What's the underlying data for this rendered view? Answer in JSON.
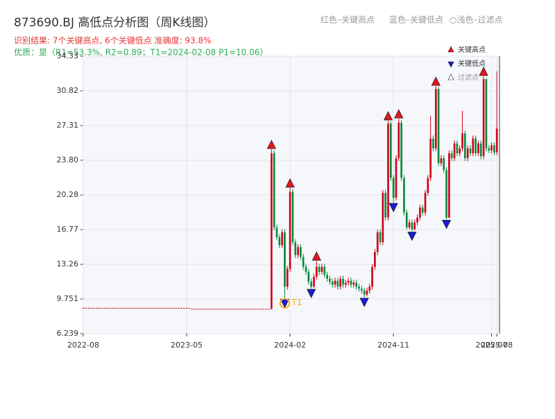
{
  "chart_data": {
    "type": "candlestick",
    "title": "873690.BJ 高低点分析图（周K线图）",
    "header_legend": [
      "红色–关键高点",
      "蓝色–关键低点",
      "○浅色–过滤点"
    ],
    "subtitle": "识别结果: 7个关键高点, 6个关键低点  准确度: 93.8%",
    "quality": "优质：是（R1=53.3%, R2=0.89；T1=2024-02-08 P1=10.06）",
    "legend": [
      "关键高点",
      "关键低点",
      "过滤点"
    ],
    "up_color": "#d0021b",
    "down_color": "#0a8a3a",
    "high_color": "#e8141c",
    "low_color": "#1a1ad8",
    "annotation_color": "#f5a623",
    "categories": [
      "2022-08",
      null,
      null,
      null,
      null,
      null,
      null,
      null,
      null,
      null,
      null,
      null,
      null,
      null,
      null,
      null,
      null,
      null,
      null,
      null,
      null,
      null,
      null,
      null,
      null,
      null,
      null,
      null,
      null,
      null,
      null,
      null,
      null,
      null,
      null,
      null,
      null,
      null,
      null,
      "2023-05",
      null,
      null,
      null,
      null,
      null,
      null,
      null,
      null,
      null,
      null,
      null,
      null,
      null,
      null,
      null,
      null,
      null,
      null,
      null,
      null,
      null,
      null,
      null,
      null,
      null,
      null,
      null,
      null,
      null,
      null,
      null,
      null,
      null,
      null,
      null,
      null,
      null,
      null,
      "2024-02",
      null,
      null,
      null,
      null,
      null,
      null,
      null,
      null,
      null,
      null,
      null,
      null,
      null,
      null,
      null,
      null,
      null,
      null,
      null,
      null,
      null,
      null,
      null,
      null,
      null,
      null,
      null,
      null,
      null,
      null,
      null,
      null,
      null,
      null,
      null,
      null,
      null,
      null,
      "2024-11",
      null,
      null,
      null,
      null,
      null,
      null,
      null,
      null,
      null,
      null,
      null,
      null,
      null,
      null,
      null,
      null,
      null,
      null,
      null,
      null,
      null,
      null,
      null,
      null,
      null,
      null,
      null,
      null,
      null,
      null,
      null,
      null,
      null,
      null,
      null,
      null,
      "2025-07",
      null,
      "2025-08"
    ],
    "open": [
      8.85,
      8.85,
      8.85,
      8.85,
      8.85,
      8.85,
      8.85,
      8.85,
      8.85,
      8.85,
      8.85,
      8.85,
      8.85,
      8.85,
      8.85,
      8.85,
      8.85,
      8.85,
      8.85,
      8.85,
      8.85,
      8.85,
      8.85,
      8.85,
      8.85,
      8.85,
      8.85,
      8.85,
      8.85,
      8.85,
      8.85,
      8.85,
      8.85,
      8.85,
      8.85,
      8.85,
      8.85,
      8.85,
      8.85,
      8.85,
      8.85,
      8.75,
      8.75,
      8.75,
      8.75,
      8.75,
      8.75,
      8.75,
      8.75,
      8.75,
      8.75,
      8.75,
      8.75,
      8.75,
      8.75,
      8.75,
      8.75,
      8.75,
      8.75,
      8.75,
      8.75,
      8.75,
      8.75,
      8.75,
      8.75,
      8.75,
      8.75,
      8.75,
      8.75,
      8.75,
      8.75,
      8.75,
      24.5,
      17.0,
      16.0,
      15.2,
      16.5,
      11.0,
      12.8,
      20.6,
      15.5,
      14.2,
      15.0,
      14.0,
      13.0,
      12.5,
      11.5,
      11.0,
      12.0,
      13.0,
      12.5,
      13.0,
      12.2,
      11.8,
      11.5,
      11.2,
      11.6,
      11.0,
      11.8,
      11.2,
      11.4,
      11.6,
      11.2,
      11.4,
      11.0,
      10.8,
      10.6,
      10.2,
      10.6,
      11.0,
      13.0,
      14.5,
      16.5,
      15.5,
      20.5,
      18.0,
      27.5,
      22.0,
      20.0,
      24.0,
      27.6,
      22.0,
      18.5,
      17.0,
      17.5,
      16.8,
      17.5,
      18.0,
      19.0,
      18.5,
      20.5,
      22.0,
      26.0,
      25.0,
      31.0,
      23.5,
      24.0,
      22.8,
      18.0,
      24.5,
      24.0,
      25.5,
      24.5,
      25.0,
      26.5,
      24.0,
      25.0,
      24.5,
      26.0,
      24.5,
      25.5,
      24.2,
      32.0,
      25.0,
      24.8,
      25.3,
      24.6
    ],
    "high": [
      8.85,
      8.85,
      8.85,
      8.85,
      8.85,
      8.85,
      8.85,
      8.85,
      8.85,
      8.85,
      8.85,
      8.85,
      8.85,
      8.85,
      8.85,
      8.85,
      8.85,
      8.85,
      8.85,
      8.85,
      8.85,
      8.85,
      8.85,
      8.85,
      8.85,
      8.85,
      8.85,
      8.85,
      8.85,
      8.85,
      8.85,
      8.85,
      8.85,
      8.85,
      8.85,
      8.85,
      8.85,
      8.85,
      8.85,
      8.85,
      8.85,
      8.75,
      8.75,
      8.75,
      8.75,
      8.75,
      8.75,
      8.75,
      8.75,
      8.75,
      8.75,
      8.75,
      8.75,
      8.75,
      8.75,
      8.75,
      8.75,
      8.75,
      8.75,
      8.75,
      8.75,
      8.75,
      8.75,
      8.75,
      8.75,
      8.75,
      8.75,
      8.75,
      8.75,
      8.75,
      8.75,
      24.9,
      24.8,
      17.3,
      16.3,
      16.8,
      16.8,
      13.1,
      21.0,
      20.9,
      15.8,
      15.3,
      15.3,
      14.3,
      13.3,
      12.8,
      11.8,
      12.3,
      13.6,
      13.3,
      13.3,
      13.3,
      12.5,
      12.1,
      11.8,
      11.9,
      11.9,
      12.1,
      12.1,
      11.7,
      11.9,
      11.9,
      11.7,
      11.7,
      11.3,
      11.1,
      10.9,
      10.9,
      11.3,
      13.3,
      14.8,
      16.8,
      16.8,
      20.8,
      20.8,
      27.8,
      27.7,
      22.3,
      24.3,
      28.0,
      27.9,
      22.3,
      18.8,
      17.8,
      17.8,
      17.8,
      18.3,
      19.3,
      19.3,
      20.8,
      22.3,
      28.3,
      26.3,
      31.3,
      31.2,
      24.3,
      24.3,
      23.1,
      24.8,
      24.8,
      25.8,
      25.8,
      25.3,
      28.8,
      26.8,
      25.3,
      25.3,
      26.3,
      26.3,
      25.8,
      25.8,
      32.3,
      32.1,
      25.3,
      25.6,
      25.6,
      32.8
    ],
    "low": [
      8.85,
      8.85,
      8.85,
      8.85,
      8.85,
      8.85,
      8.85,
      8.85,
      8.85,
      8.85,
      8.85,
      8.85,
      8.85,
      8.85,
      8.85,
      8.85,
      8.85,
      8.85,
      8.85,
      8.85,
      8.85,
      8.85,
      8.85,
      8.85,
      8.85,
      8.85,
      8.85,
      8.85,
      8.85,
      8.85,
      8.85,
      8.85,
      8.85,
      8.85,
      8.85,
      8.85,
      8.85,
      8.85,
      8.85,
      8.85,
      8.85,
      8.75,
      8.75,
      8.75,
      8.75,
      8.75,
      8.75,
      8.75,
      8.75,
      8.75,
      8.75,
      8.75,
      8.75,
      8.75,
      8.75,
      8.75,
      8.75,
      8.75,
      8.75,
      8.75,
      8.75,
      8.75,
      8.75,
      8.75,
      8.75,
      8.75,
      8.75,
      8.75,
      8.75,
      8.75,
      8.75,
      8.7,
      16.7,
      15.7,
      14.9,
      14.9,
      9.8,
      10.7,
      12.5,
      15.2,
      13.9,
      13.9,
      13.7,
      12.7,
      12.2,
      11.2,
      10.8,
      10.9,
      11.7,
      12.2,
      12.2,
      11.9,
      11.5,
      11.2,
      10.9,
      10.9,
      10.7,
      10.7,
      10.9,
      10.9,
      11.1,
      10.9,
      10.9,
      10.7,
      10.5,
      10.3,
      9.9,
      10.0,
      10.3,
      10.7,
      12.7,
      14.2,
      15.2,
      15.2,
      17.7,
      17.7,
      21.7,
      19.5,
      19.7,
      23.7,
      21.7,
      18.2,
      16.8,
      16.8,
      16.6,
      16.7,
      17.2,
      17.7,
      18.2,
      18.2,
      20.2,
      21.7,
      24.7,
      24.7,
      23.2,
      23.2,
      22.5,
      17.8,
      17.9,
      23.7,
      23.7,
      24.2,
      24.2,
      24.7,
      23.7,
      23.7,
      24.2,
      24.2,
      24.2,
      24.2,
      23.9,
      23.9,
      24.7,
      24.5,
      24.5,
      24.3,
      24.3
    ],
    "close": [
      8.85,
      8.85,
      8.85,
      8.85,
      8.85,
      8.85,
      8.85,
      8.85,
      8.85,
      8.85,
      8.85,
      8.85,
      8.85,
      8.85,
      8.85,
      8.85,
      8.85,
      8.85,
      8.85,
      8.85,
      8.85,
      8.85,
      8.85,
      8.85,
      8.85,
      8.85,
      8.85,
      8.85,
      8.85,
      8.85,
      8.85,
      8.85,
      8.85,
      8.85,
      8.85,
      8.85,
      8.85,
      8.85,
      8.85,
      8.85,
      8.85,
      8.75,
      8.75,
      8.75,
      8.75,
      8.75,
      8.75,
      8.75,
      8.75,
      8.75,
      8.75,
      8.75,
      8.75,
      8.75,
      8.75,
      8.75,
      8.75,
      8.75,
      8.75,
      8.75,
      8.75,
      8.75,
      8.75,
      8.75,
      8.75,
      8.75,
      8.75,
      8.75,
      8.75,
      8.75,
      8.75,
      24.5,
      17.0,
      16.0,
      15.2,
      16.5,
      11.0,
      12.8,
      20.6,
      15.5,
      14.2,
      15.0,
      14.0,
      13.0,
      12.5,
      11.5,
      11.0,
      12.0,
      13.0,
      12.5,
      13.0,
      12.2,
      11.8,
      11.5,
      11.2,
      11.6,
      11.0,
      11.8,
      11.2,
      11.4,
      11.6,
      11.2,
      11.4,
      11.0,
      10.8,
      10.6,
      10.2,
      10.6,
      11.0,
      13.0,
      14.5,
      16.5,
      15.5,
      20.5,
      18.0,
      27.5,
      22.0,
      20.0,
      24.0,
      27.6,
      22.0,
      18.5,
      17.0,
      17.5,
      16.8,
      17.5,
      18.0,
      19.0,
      18.5,
      20.5,
      22.0,
      26.0,
      25.0,
      31.0,
      23.5,
      24.0,
      22.8,
      18.0,
      24.5,
      24.0,
      25.5,
      24.5,
      25.0,
      26.5,
      24.0,
      25.0,
      24.5,
      26.0,
      24.5,
      25.5,
      24.2,
      32.0,
      25.0,
      24.8,
      25.3,
      24.6,
      27.0
    ],
    "high_points": [
      71,
      78,
      88,
      115,
      119,
      133,
      151
    ],
    "low_points": [
      76,
      86,
      106,
      117,
      124,
      137
    ],
    "annotation": {
      "label": "T1",
      "index": 76
    },
    "ylim": [
      6.239,
      34.33
    ],
    "yticks": [
      6.239,
      9.751,
      13.26,
      16.77,
      20.28,
      {
        "value": 23.8,
        "label": "23.80"
      },
      27.31,
      30.82,
      34.33
    ],
    "grid": true
  }
}
